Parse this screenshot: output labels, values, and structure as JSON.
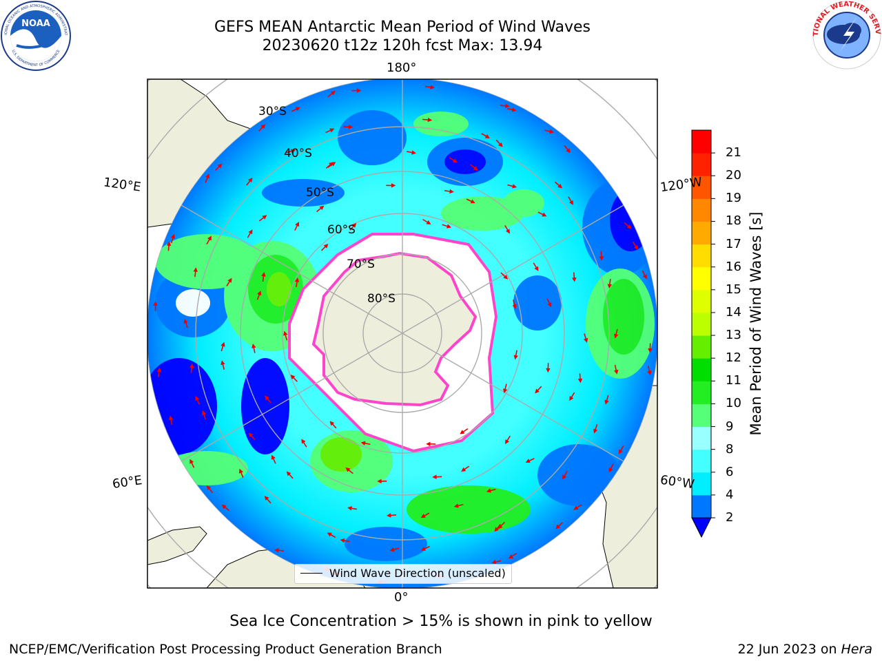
{
  "title": {
    "line1": "GEFS MEAN Antarctic Mean Period of Wind Waves",
    "line2": "20230620 t12z 120h fcst   Max: 13.94"
  },
  "map": {
    "projection": "south-polar-stereographic",
    "lon_labels": {
      "top": "180°",
      "bottom": "0°",
      "upper_left": "120°E",
      "lower_left": "60°E",
      "upper_right": "120°W",
      "lower_right": "60°W"
    },
    "lat_labels": [
      "30°S",
      "40°S",
      "50°S",
      "60°S",
      "70°S",
      "80°S"
    ],
    "legend_text": "Wind Wave Direction (unscaled)",
    "land_color": "#eeeedd",
    "ice_colors": [
      "#ff66cc",
      "#ff99ff",
      "#ffcc66",
      "#ffff66"
    ]
  },
  "colorbar": {
    "label": "Mean Period of Wind Waves [s]",
    "ticks": [
      "2",
      "4",
      "6",
      "8",
      "9",
      "10",
      "11",
      "12",
      "13",
      "14",
      "15",
      "16",
      "17",
      "18",
      "19",
      "20",
      "21"
    ],
    "colors": [
      "#0000ff",
      "#0077ff",
      "#00eeff",
      "#44ffff",
      "#99ffff",
      "#55ff77",
      "#22ee22",
      "#00dd00",
      "#66ee00",
      "#bbff00",
      "#ddff00",
      "#ffff00",
      "#ffdd00",
      "#ffaa00",
      "#ff8800",
      "#ff5500",
      "#ff2200",
      "#ff0000"
    ]
  },
  "footnote": "Sea Ice Concentration > 15% is shown in pink to yellow",
  "footer": {
    "left": "NCEP/EMC/Verification Post Processing Product Generation Branch",
    "right_prefix": "22 Jun 2023 on ",
    "right_host": "Hera"
  },
  "logos": {
    "noaa": "NOAA",
    "nws": "NATIONAL WEATHER SERVICE",
    "noaa_ring": "NATIONAL OCEANIC AND ATMOSPHERIC ADMINISTRATION",
    "noaa_ring_bottom": "U.S. DEPARTMENT OF COMMERCE"
  }
}
